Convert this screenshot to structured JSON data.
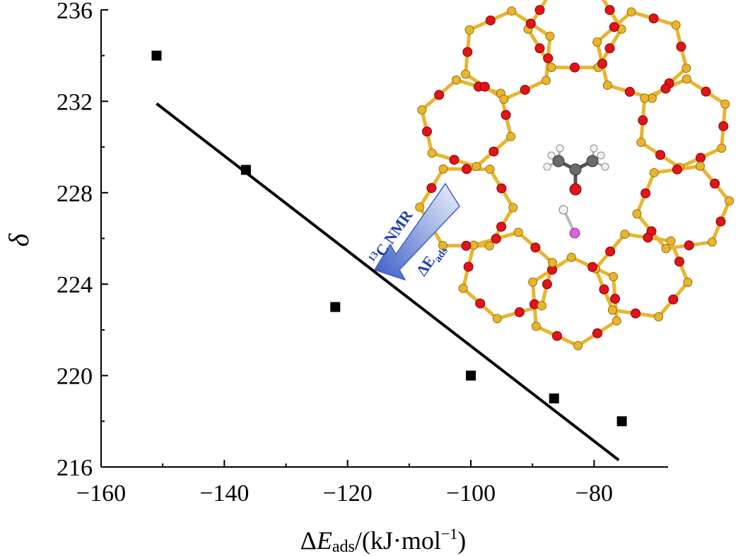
{
  "chart_data": {
    "type": "scatter",
    "title": "",
    "xlabel": {
      "delta": "Δ",
      "var": "E",
      "sub": "ads",
      "rest": "/(kJ·mol",
      "sup": "−1",
      "close": ")"
    },
    "ylabel": "δ",
    "xlim": [
      -160,
      -68
    ],
    "ylim": [
      216,
      236
    ],
    "xticks": [
      -160,
      -140,
      -120,
      -100,
      -80
    ],
    "xtick_labels": [
      "−160",
      "−140",
      "−120",
      "−100",
      "−80"
    ],
    "yticks": [
      216,
      220,
      224,
      228,
      232,
      236
    ],
    "ytick_labels": [
      "216",
      "220",
      "224",
      "228",
      "232",
      "236"
    ],
    "series": [
      {
        "marker": "square",
        "color": "#000000",
        "points": [
          {
            "x": -151,
            "y": 234
          },
          {
            "x": -136.5,
            "y": 229
          },
          {
            "x": -122,
            "y": 223
          },
          {
            "x": -100,
            "y": 220
          },
          {
            "x": -86.5,
            "y": 219
          },
          {
            "x": -75.5,
            "y": 218
          }
        ]
      }
    ],
    "fit_line": {
      "x": [
        -151,
        -76
      ],
      "y": [
        231.9,
        216.3
      ],
      "color": "#000000"
    },
    "inset": {
      "arrow_label_top": {
        "sup": "13",
        "text": "C NMR"
      },
      "arrow_label_bottom": {
        "delta": "Δ",
        "text": "E",
        "sub": "ads"
      },
      "arrow_color": "#2845b8",
      "zeolite_colors": {
        "silicon": "#e8b530",
        "oxygen": "#e0141a",
        "aluminum": "#d462d8",
        "carbon": "#6b6b6b",
        "hydrogen": "#f2f2f2"
      }
    }
  }
}
